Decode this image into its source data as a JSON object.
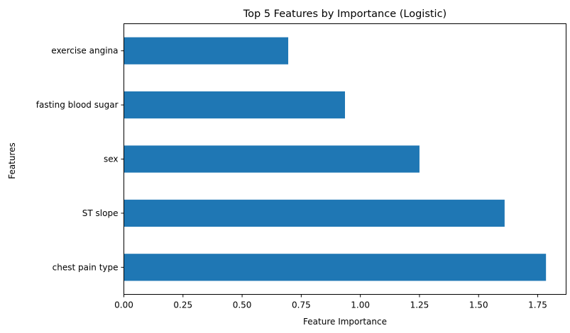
{
  "chart_data": {
    "type": "bar",
    "orientation": "horizontal",
    "title": "Top 5 Features by Importance (Logistic)",
    "xlabel": "Feature Importance",
    "ylabel": "Features",
    "categories": [
      "chest pain type",
      "ST slope",
      "sex",
      "fasting blood sugar",
      "exercise angina"
    ],
    "values": [
      1.785,
      1.61,
      1.25,
      0.935,
      0.695
    ],
    "xlim": [
      0,
      1.87
    ],
    "xticks": [
      0.0,
      0.25,
      0.5,
      0.75,
      1.0,
      1.25,
      1.5,
      1.75
    ],
    "xtick_labels": [
      "0.00",
      "0.25",
      "0.50",
      "0.75",
      "1.00",
      "1.25",
      "1.50",
      "1.75"
    ],
    "bar_color": "#1f77b4",
    "grid": false,
    "legend": "none"
  }
}
